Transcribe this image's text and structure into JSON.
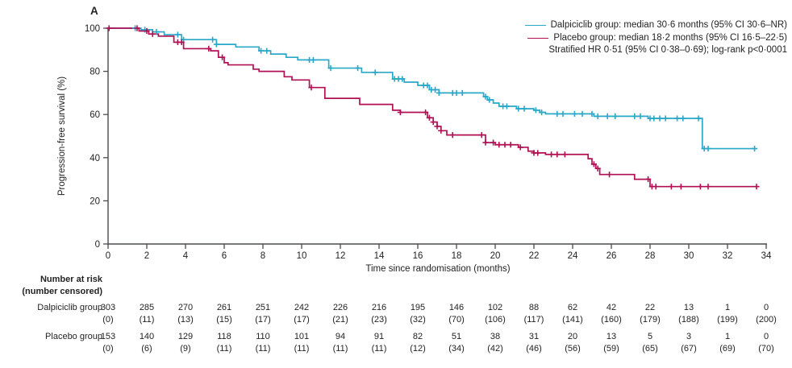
{
  "panel_label": "A",
  "colors": {
    "dalpiciclib": "#2aa8c8",
    "placebo": "#b01053",
    "axis": "#4a4b4d",
    "text": "#232323"
  },
  "legend": {
    "items": [
      {
        "series": "dalpiciclib",
        "label": "Dalpiciclib group: median 30·6 months (95% CI 30·6–NR)",
        "color": "#2aa8c8"
      },
      {
        "series": "placebo",
        "label": "Placebo group: median 18·2 months (95% CI 16·5–22·5)",
        "color": "#b01053"
      }
    ],
    "note": "Stratified HR 0·51 (95% CI 0·38–0·69); log-rank p<0·0001"
  },
  "chart_data": {
    "type": "line",
    "variant": "kaplan_meier_step",
    "title": "",
    "xlabel": "Time since randomisation (months)",
    "ylabel": "Progression-free survival (%)",
    "xlim": [
      0,
      34
    ],
    "ylim": [
      0,
      100
    ],
    "xticks": [
      0,
      2,
      4,
      6,
      8,
      10,
      12,
      14,
      16,
      18,
      20,
      22,
      24,
      26,
      28,
      30,
      32,
      34
    ],
    "yticks": [
      0,
      20,
      40,
      60,
      80,
      100
    ],
    "grid": false,
    "legend_position": "top-right",
    "series": [
      {
        "name": "Dalpiciclib group",
        "median_months": "30·6",
        "ci_95": "30·6–NR",
        "color": "#2aa8c8",
        "steps": [
          [
            0,
            100
          ],
          [
            1.7,
            99.3
          ],
          [
            2.3,
            98.3
          ],
          [
            2.9,
            97
          ],
          [
            3.8,
            94.7
          ],
          [
            5.6,
            92.5
          ],
          [
            6.6,
            91.3
          ],
          [
            7.8,
            89.5
          ],
          [
            8.4,
            88
          ],
          [
            9.2,
            86.5
          ],
          [
            9.8,
            85.3
          ],
          [
            11.4,
            81.5
          ],
          [
            13.1,
            79.5
          ],
          [
            14.7,
            76.5
          ],
          [
            15.3,
            75
          ],
          [
            16.0,
            73.5
          ],
          [
            16.6,
            71.5
          ],
          [
            17.1,
            70
          ],
          [
            19.4,
            68.3
          ],
          [
            19.6,
            66.8
          ],
          [
            19.9,
            65.3
          ],
          [
            20.2,
            63.8
          ],
          [
            21.1,
            62.7
          ],
          [
            22.0,
            62
          ],
          [
            22.3,
            61
          ],
          [
            22.6,
            60.3
          ],
          [
            25.1,
            59.2
          ],
          [
            27.9,
            58.2
          ],
          [
            30.7,
            44.2
          ],
          [
            33.4,
            44.2
          ]
        ],
        "censor_times": [
          1.4,
          1.9,
          2.5,
          3.6,
          3.9,
          5.4,
          5.6,
          7.9,
          8.2,
          10.4,
          10.6,
          11.5,
          12.9,
          13.8,
          14.8,
          15.0,
          15.2,
          16.3,
          16.5,
          16.7,
          16.9,
          17.1,
          17.8,
          18.0,
          18.3,
          19.5,
          19.7,
          20.4,
          20.6,
          21.2,
          21.5,
          22.1,
          22.4,
          23.2,
          23.5,
          24.1,
          24.5,
          25.0,
          25.3,
          25.8,
          26.2,
          27.2,
          27.5,
          28.0,
          28.2,
          28.5,
          28.8,
          29.4,
          29.7,
          30.5,
          30.8,
          31.0,
          33.4
        ]
      },
      {
        "name": "Placebo group",
        "median_months": "18·2",
        "ci_95": "16·5–22·5",
        "color": "#b01053",
        "steps": [
          [
            0,
            100
          ],
          [
            1.6,
            98.7
          ],
          [
            2.1,
            97.3
          ],
          [
            2.6,
            96.3
          ],
          [
            3.4,
            93.5
          ],
          [
            3.9,
            90.5
          ],
          [
            5.3,
            89.5
          ],
          [
            5.7,
            86.5
          ],
          [
            6.0,
            84
          ],
          [
            6.2,
            83
          ],
          [
            7.5,
            81
          ],
          [
            7.8,
            80
          ],
          [
            9.1,
            77.5
          ],
          [
            9.5,
            76
          ],
          [
            10.4,
            72.5
          ],
          [
            11.2,
            67.5
          ],
          [
            13.0,
            64.7
          ],
          [
            14.7,
            62
          ],
          [
            15.1,
            61
          ],
          [
            16.5,
            58.5
          ],
          [
            16.8,
            56.5
          ],
          [
            17.0,
            54.5
          ],
          [
            17.2,
            52.5
          ],
          [
            17.5,
            50.5
          ],
          [
            19.5,
            47
          ],
          [
            20.0,
            46
          ],
          [
            21.2,
            44.8
          ],
          [
            21.7,
            43
          ],
          [
            22.0,
            42.2
          ],
          [
            22.6,
            41.5
          ],
          [
            24.8,
            39.5
          ],
          [
            25.0,
            37
          ],
          [
            25.2,
            35
          ],
          [
            25.4,
            32.2
          ],
          [
            27.2,
            30
          ],
          [
            28.0,
            26.6
          ],
          [
            33.6,
            26.6
          ]
        ],
        "censor_times": [
          0.05,
          1.5,
          2.0,
          2.3,
          3.6,
          3.8,
          5.2,
          5.9,
          10.5,
          15.1,
          16.4,
          16.6,
          16.8,
          17.0,
          17.2,
          17.8,
          19.3,
          19.5,
          19.9,
          20.2,
          20.5,
          20.8,
          21.3,
          22.0,
          22.2,
          22.9,
          23.2,
          23.6,
          25.1,
          25.3,
          25.9,
          27.9,
          28.1,
          28.3,
          29.1,
          29.6,
          30.6,
          31.0,
          33.5
        ]
      }
    ]
  },
  "risk_table": {
    "title": "Number at risk",
    "subtitle": "(number censored)",
    "time_points": [
      0,
      2,
      4,
      6,
      8,
      10,
      12,
      14,
      16,
      18,
      20,
      22,
      24,
      26,
      28,
      30,
      32,
      34
    ],
    "rows": [
      {
        "label": "Dalpiciclib group",
        "at_risk": [
          303,
          285,
          270,
          261,
          251,
          242,
          226,
          216,
          195,
          146,
          102,
          88,
          62,
          42,
          22,
          13,
          1,
          0
        ],
        "censored": [
          0,
          11,
          13,
          15,
          17,
          17,
          21,
          23,
          32,
          70,
          106,
          117,
          141,
          160,
          179,
          188,
          199,
          200
        ]
      },
      {
        "label": "Placebo group",
        "at_risk": [
          153,
          140,
          129,
          118,
          110,
          101,
          94,
          91,
          82,
          51,
          38,
          31,
          20,
          13,
          5,
          3,
          1,
          0
        ],
        "censored": [
          0,
          6,
          9,
          11,
          11,
          11,
          11,
          11,
          12,
          34,
          42,
          46,
          56,
          59,
          65,
          67,
          69,
          70
        ]
      }
    ]
  }
}
